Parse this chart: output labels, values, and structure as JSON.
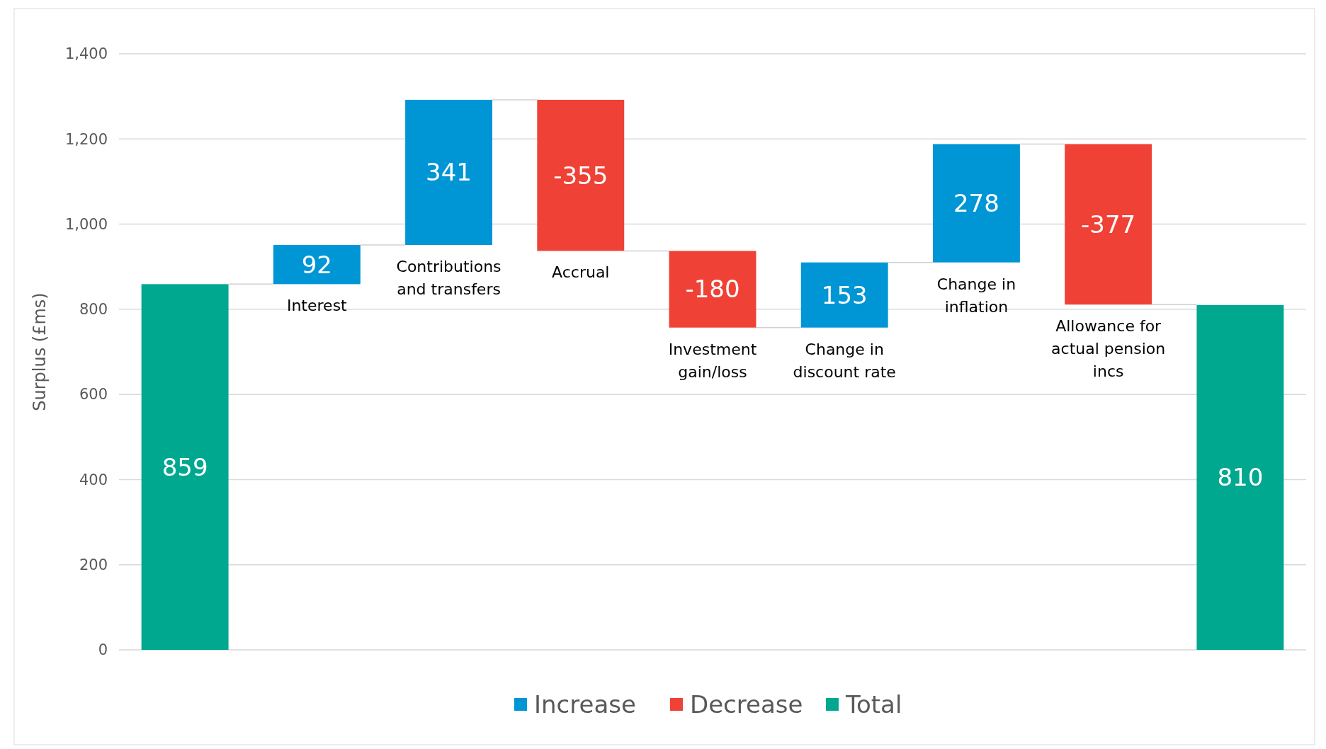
{
  "chart_data": {
    "type": "bar",
    "ylabel": "Surplus  (£ms)",
    "categories": [
      null,
      "Interest",
      "Contributions and transfers",
      "Accrual",
      "Investment gain/loss",
      "Change in discount rate",
      "Change in inflation",
      "Allowance for actual pension incs",
      null
    ],
    "series": [
      {
        "name": "Increase",
        "color": "#0096d6",
        "values": [
          null,
          92,
          341,
          null,
          null,
          153,
          278,
          null,
          null
        ],
        "base": [
          null,
          859,
          951,
          null,
          null,
          757,
          910,
          null,
          null
        ]
      },
      {
        "name": "Decrease",
        "color": "#ef4136",
        "values": [
          null,
          null,
          null,
          -355,
          -180,
          null,
          null,
          -377,
          null
        ],
        "base": [
          null,
          null,
          null,
          1292,
          937,
          null,
          null,
          1188,
          null
        ]
      },
      {
        "name": "Total",
        "color": "#00a88f",
        "values": [
          859,
          null,
          null,
          null,
          null,
          null,
          null,
          null,
          810
        ],
        "base": [
          0,
          null,
          null,
          null,
          null,
          null,
          null,
          null,
          0
        ]
      }
    ],
    "ylim": [
      0,
      1400
    ],
    "yticks": [
      0,
      200,
      400,
      600,
      800,
      {
        "value": 1000,
        "label": "1,000"
      },
      {
        "value": 1200,
        "label": "1,200"
      },
      {
        "value": 1400,
        "label": "1,400"
      }
    ],
    "grid": "y",
    "legend": "bottom",
    "data_labels": true
  }
}
